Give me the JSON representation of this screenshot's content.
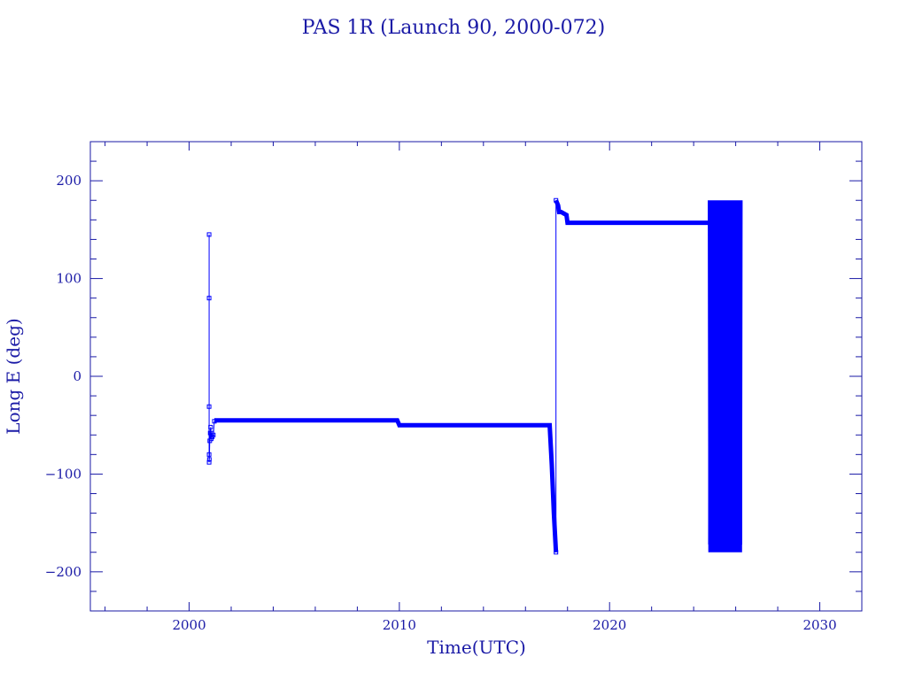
{
  "colors": {
    "axes": "#1a1aa6",
    "data": "#0000ff"
  },
  "chart_data": {
    "type": "line",
    "title": "PAS 1R (Launch 90, 2000-072)",
    "xlabel": "Time(UTC)",
    "ylabel": "Long E (deg)",
    "xlim": [
      1995.3,
      2032
    ],
    "ylim": [
      -240,
      240
    ],
    "x_ticks": [
      2000,
      2010,
      2020,
      2030
    ],
    "x_tick_labels": [
      "2000",
      "2010",
      "2020",
      "2030"
    ],
    "x_minor_step": 2,
    "y_ticks": [
      -200,
      -100,
      0,
      100,
      200
    ],
    "y_tick_labels": [
      "−200",
      "−100",
      "0",
      "100",
      "200"
    ],
    "y_minor_step": 20,
    "grid": false,
    "marker": "square",
    "series": [
      {
        "segments": [
          {
            "style": "thin",
            "x": [
              2000.95,
              2000.95,
              2000.95,
              2000.95,
              2000.95,
              2000.96,
              2000.98,
              2001.0,
              2001.02,
              2001.05,
              2001.08,
              2001.1,
              2001.15,
              2001.2
            ],
            "y": [
              -88,
              145,
              80,
              -31,
              -80,
              -85,
              -66,
              -58,
              -52,
              -64,
              -58,
              -62,
              -60,
              -46
            ]
          },
          {
            "style": "thick",
            "x": [
              2001.2,
              2009.9,
              2010.0,
              2017.15,
              2017.25,
              2017.35,
              2017.45
            ],
            "y": [
              -45,
              -45,
              -50,
              -50,
              -90,
              -140,
              -180
            ]
          },
          {
            "style": "thin",
            "x": [
              2017.45,
              2017.45
            ],
            "y": [
              -180,
              180
            ]
          },
          {
            "style": "thick",
            "x": [
              2017.45,
              2017.55,
              2017.6,
              2017.7,
              2017.95,
              2018.0,
              2024.7
            ],
            "y": [
              180,
              175,
              168,
              168,
              165,
              157,
              157
            ]
          },
          {
            "style": "oscillate",
            "x_start": 2024.7,
            "x_end": 2026.3,
            "y_min": -180,
            "y_max": 180,
            "cycles": 30
          }
        ]
      }
    ]
  }
}
